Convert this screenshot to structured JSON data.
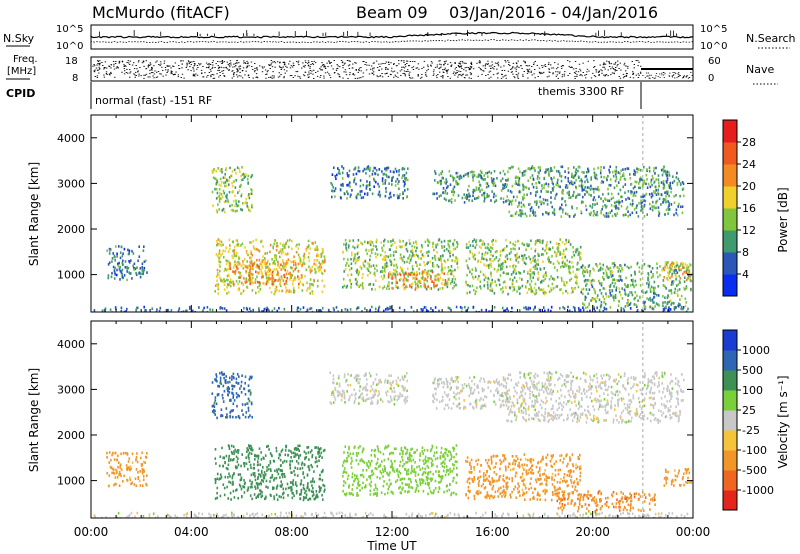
{
  "header": {
    "station": "McMurdo (fitACF)",
    "beam": "Beam 09",
    "date_range": "03/Jan/2016 - 04/Jan/2016"
  },
  "summary_panels": {
    "nsky_label": "N.Sky",
    "nsearch_label": "N.Search",
    "freq_label_1": "Freq.",
    "freq_label_2": "[MHz]",
    "nave_label": "Nave",
    "cpid_label": "CPID",
    "noise_ticks": [
      "10^5",
      "10^0"
    ],
    "freq_ticks": [
      "18",
      "8"
    ],
    "nave_ticks": [
      "60",
      "0"
    ],
    "cpid_modes": [
      {
        "name": "normal (fast) -151 RF",
        "start_hour": 0,
        "end_hour": 22.0
      },
      {
        "name": "themis 3300 RF",
        "start_hour": 22.0,
        "end_hour": 24
      }
    ]
  },
  "axes": {
    "x_ticks": [
      "00:00",
      "04:00",
      "08:00",
      "12:00",
      "16:00",
      "20:00",
      "00:00"
    ],
    "x_label": "Time UT",
    "y_label": "Slant Range [km]",
    "y_ticks": [
      "1000",
      "2000",
      "3000",
      "4000"
    ]
  },
  "power_scale": {
    "label": "Power [dB]",
    "ticks": [
      "4",
      "8",
      "12",
      "16",
      "20",
      "24",
      "28"
    ],
    "colors": [
      "#0a2ef0",
      "#2b58b8",
      "#3f9a6e",
      "#7fc63c",
      "#f0d02a",
      "#f48a24",
      "#f05a1e",
      "#e51e1e"
    ]
  },
  "velocity_scale": {
    "label": "Velocity [m s⁻¹]",
    "ticks": [
      "1000",
      "500",
      "100",
      "25",
      "-25",
      "-100",
      "-500",
      "-1000"
    ],
    "colors": [
      "#1a3cd2",
      "#2f66b4",
      "#3e9155",
      "#7ad038",
      "#c8c8c8",
      "#f6c43a",
      "#f2962a",
      "#ee6620",
      "#e2261c"
    ]
  },
  "chart_data": [
    {
      "type": "heatmap",
      "name": "Power",
      "xlabel": "Time UT",
      "ylabel": "Slant Range [km]",
      "xlim": [
        0,
        24
      ],
      "ylim": [
        180,
        4500
      ],
      "colorbar_label": "Power [dB]",
      "colorbar_range": [
        0,
        32
      ],
      "regions": [
        {
          "x0": 0.1,
          "x1": 24,
          "y0": 180,
          "y1": 320,
          "value": 6
        },
        {
          "x0": 0.6,
          "x1": 2.2,
          "y0": 900,
          "y1": 1650,
          "value": 8
        },
        {
          "x0": 4.8,
          "x1": 6.4,
          "y0": 2400,
          "y1": 3400,
          "value": 14
        },
        {
          "x0": 4.9,
          "x1": 9.3,
          "y0": 600,
          "y1": 1800,
          "value": 17
        },
        {
          "x0": 5.4,
          "x1": 8.4,
          "y0": 800,
          "y1": 1300,
          "value": 22
        },
        {
          "x0": 9.5,
          "x1": 12.6,
          "y0": 2700,
          "y1": 3400,
          "value": 8
        },
        {
          "x0": 10.0,
          "x1": 14.6,
          "y0": 700,
          "y1": 1800,
          "value": 14
        },
        {
          "x0": 11.8,
          "x1": 14.2,
          "y0": 700,
          "y1": 1100,
          "value": 22
        },
        {
          "x0": 13.6,
          "x1": 16.6,
          "y0": 2600,
          "y1": 3300,
          "value": 10
        },
        {
          "x0": 14.9,
          "x1": 19.5,
          "y0": 600,
          "y1": 1800,
          "value": 14
        },
        {
          "x0": 16.5,
          "x1": 23.6,
          "y0": 2300,
          "y1": 3400,
          "value": 10
        },
        {
          "x0": 19.5,
          "x1": 23.9,
          "y0": 300,
          "y1": 1300,
          "value": 12
        },
        {
          "x0": 22.8,
          "x1": 23.9,
          "y0": 900,
          "y1": 1300,
          "value": 20
        }
      ]
    },
    {
      "type": "heatmap",
      "name": "Velocity",
      "xlabel": "Time UT",
      "ylabel": "Slant Range [km]",
      "xlim": [
        0,
        24
      ],
      "ylim": [
        180,
        4500
      ],
      "colorbar_label": "Velocity [m s⁻¹]",
      "colorbar_range": [
        -1000,
        1000
      ],
      "regions": [
        {
          "x0": 0.1,
          "x1": 24,
          "y0": 180,
          "y1": 320,
          "value": 0
        },
        {
          "x0": 0.6,
          "x1": 2.2,
          "y0": 900,
          "y1": 1650,
          "value": -150
        },
        {
          "x0": 4.8,
          "x1": 6.4,
          "y0": 2400,
          "y1": 3400,
          "value": 700
        },
        {
          "x0": 4.9,
          "x1": 9.3,
          "y0": 600,
          "y1": 1800,
          "value": 200
        },
        {
          "x0": 9.5,
          "x1": 12.6,
          "y0": 2700,
          "y1": 3400,
          "value": 0
        },
        {
          "x0": 10.0,
          "x1": 14.6,
          "y0": 700,
          "y1": 1800,
          "value": 60
        },
        {
          "x0": 13.6,
          "x1": 16.6,
          "y0": 2600,
          "y1": 3300,
          "value": 0
        },
        {
          "x0": 14.9,
          "x1": 19.5,
          "y0": 600,
          "y1": 1600,
          "value": -150
        },
        {
          "x0": 16.5,
          "x1": 23.6,
          "y0": 2300,
          "y1": 3400,
          "value": 0
        },
        {
          "x0": 18.5,
          "x1": 22.5,
          "y0": 350,
          "y1": 800,
          "value": -400
        },
        {
          "x0": 22.8,
          "x1": 23.9,
          "y0": 900,
          "y1": 1300,
          "value": -150
        }
      ]
    }
  ]
}
